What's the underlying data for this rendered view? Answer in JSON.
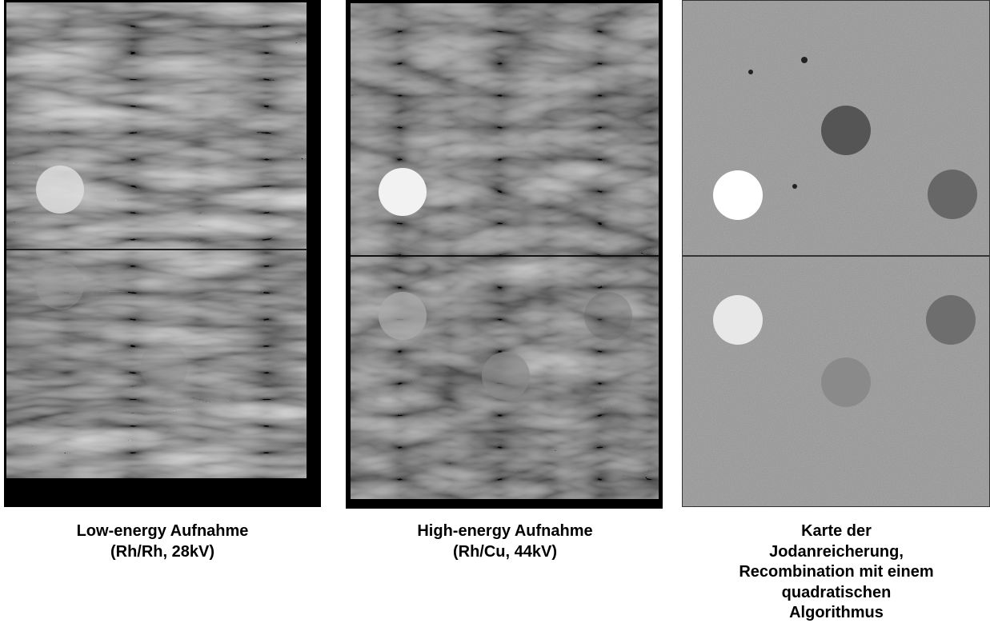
{
  "figures": [
    {
      "caption": [
        "Low-energy Aufnahme",
        "(Rh/Rh, 28kV)"
      ]
    },
    {
      "caption": [
        "High-energy Aufnahme",
        "(Rh/Cu, 44kV)"
      ]
    },
    {
      "caption": [
        "Karte der",
        "Jodanreicherung,",
        "Recombination mit einem",
        "quadratischen",
        "Algorithmus"
      ]
    }
  ]
}
